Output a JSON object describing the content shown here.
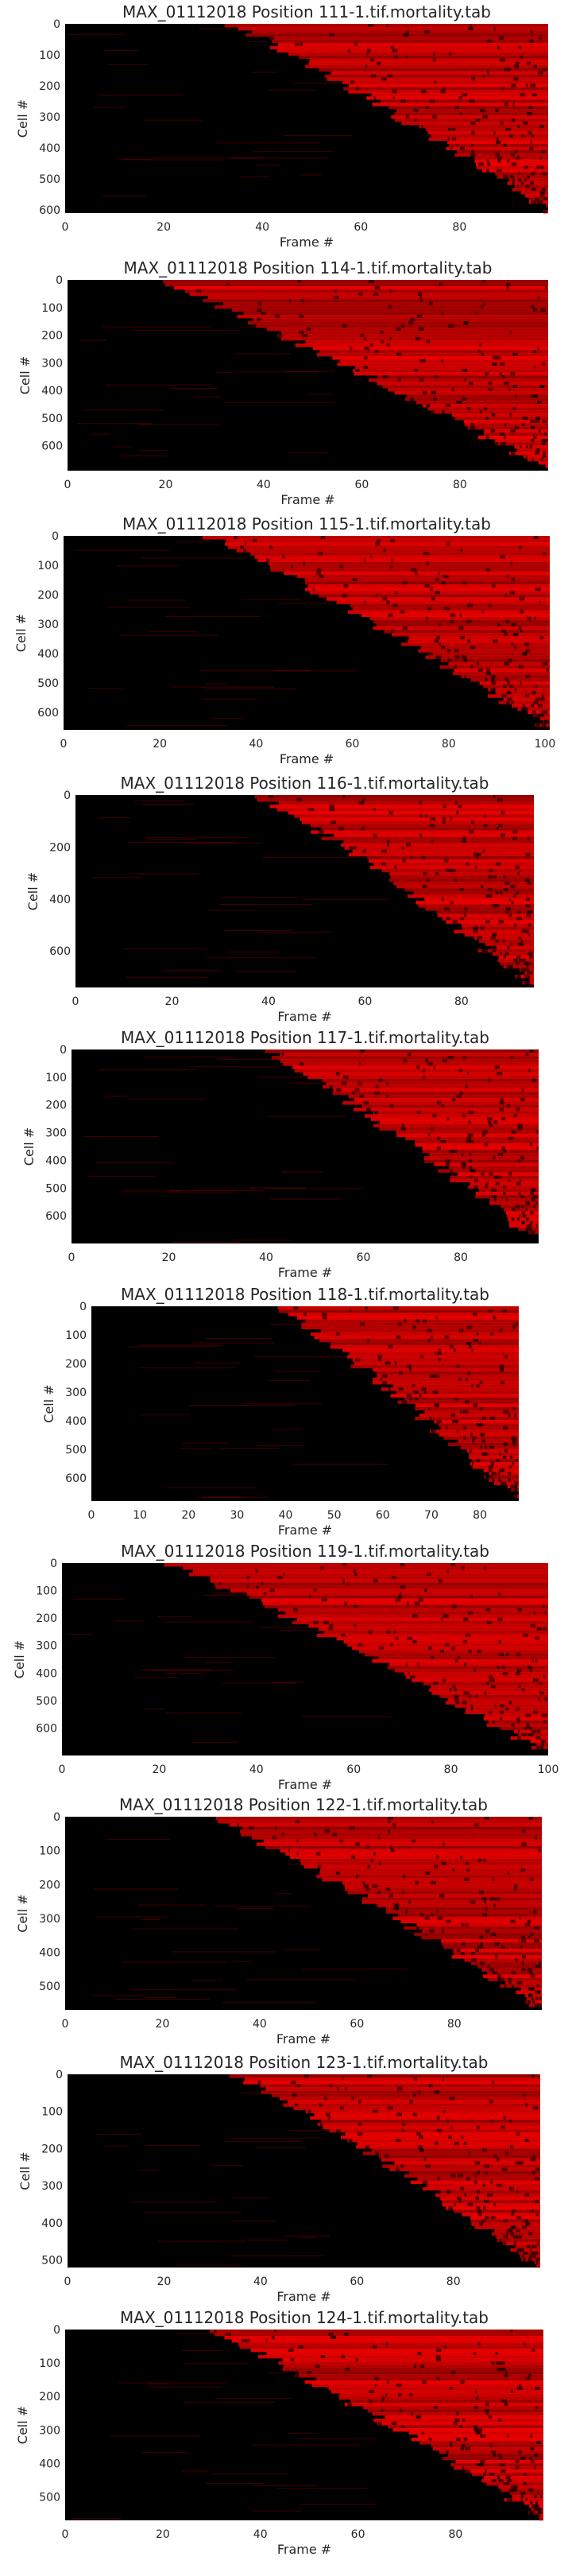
{
  "colors": {
    "background": "#000000",
    "accent": "#ff0000",
    "text": "#262626"
  },
  "chart_data": [
    {
      "type": "heatmap",
      "title": "MAX_01112018 Position 111-1.tif.mortality.tab",
      "xlabel": "Frame #",
      "ylabel": "Cell #",
      "xlim": [
        0,
        98
      ],
      "ylim": [
        0,
        610
      ],
      "x_ticks": [
        0,
        20,
        40,
        60,
        80
      ],
      "y_ticks": [
        0,
        100,
        200,
        300,
        400,
        500,
        600
      ],
      "grid": false,
      "death_frame_first": 34,
      "death_frame_last": 98
    },
    {
      "type": "heatmap",
      "title": "MAX_01112018 Position 114-1.tif.mortality.tab",
      "xlabel": "Frame #",
      "ylabel": "Cell #",
      "xlim": [
        0,
        98
      ],
      "ylim": [
        0,
        690
      ],
      "x_ticks": [
        0,
        20,
        40,
        60,
        80
      ],
      "y_ticks": [
        0,
        100,
        200,
        300,
        400,
        500,
        600
      ],
      "grid": false,
      "death_frame_first": 18,
      "death_frame_last": 98
    },
    {
      "type": "heatmap",
      "title": "MAX_01112018 Position 115-1.tif.mortality.tab",
      "xlabel": "Frame #",
      "ylabel": "Cell #",
      "xlim": [
        0,
        101
      ],
      "ylim": [
        0,
        660
      ],
      "x_ticks": [
        0,
        20,
        40,
        60,
        80,
        100
      ],
      "y_ticks": [
        0,
        100,
        200,
        300,
        400,
        500,
        600
      ],
      "grid": false,
      "death_frame_first": 30,
      "death_frame_last": 101
    },
    {
      "type": "heatmap",
      "title": "MAX_01112018 Position 116-1.tif.mortality.tab",
      "xlabel": "Frame #",
      "ylabel": "Cell #",
      "xlim": [
        0,
        95
      ],
      "ylim": [
        0,
        740
      ],
      "x_ticks": [
        0,
        20,
        40,
        60,
        80
      ],
      "y_ticks": [
        0,
        200,
        400,
        600
      ],
      "grid": false,
      "death_frame_first": 38,
      "death_frame_last": 95
    },
    {
      "type": "heatmap",
      "title": "MAX_01112018 Position 117-1.tif.mortality.tab",
      "xlabel": "Frame #",
      "ylabel": "Cell #",
      "xlim": [
        0,
        96
      ],
      "ylim": [
        0,
        700
      ],
      "x_ticks": [
        0,
        20,
        40,
        60,
        80
      ],
      "y_ticks": [
        0,
        100,
        200,
        300,
        400,
        500,
        600
      ],
      "grid": false,
      "death_frame_first": 40,
      "death_frame_last": 96
    },
    {
      "type": "heatmap",
      "title": "MAX_01112018 Position 118-1.tif.mortality.tab",
      "xlabel": "Frame #",
      "ylabel": "Cell #",
      "xlim": [
        0,
        88
      ],
      "ylim": [
        0,
        680
      ],
      "x_ticks": [
        0,
        10,
        20,
        30,
        40,
        50,
        60,
        70,
        80
      ],
      "y_ticks": [
        0,
        100,
        200,
        300,
        400,
        500,
        600
      ],
      "grid": false,
      "death_frame_first": 38,
      "death_frame_last": 88
    },
    {
      "type": "heatmap",
      "title": "MAX_01112018 Position 119-1.tif.mortality.tab",
      "xlabel": "Frame #",
      "ylabel": "Cell #",
      "xlim": [
        0,
        100
      ],
      "ylim": [
        0,
        700
      ],
      "x_ticks": [
        0,
        20,
        40,
        60,
        80,
        100
      ],
      "y_ticks": [
        0,
        100,
        200,
        300,
        400,
        500,
        600
      ],
      "grid": false,
      "death_frame_first": 22,
      "death_frame_last": 100
    },
    {
      "type": "heatmap",
      "title": "MAX_01112018 Position 122-1.tif.mortality.tab",
      "xlabel": "Frame #",
      "ylabel": "Cell #",
      "xlim": [
        0,
        98
      ],
      "ylim": [
        0,
        570
      ],
      "x_ticks": [
        0,
        20,
        40,
        60,
        80
      ],
      "y_ticks": [
        0,
        100,
        200,
        300,
        400,
        500
      ],
      "grid": false,
      "death_frame_first": 30,
      "death_frame_last": 98
    },
    {
      "type": "heatmap",
      "title": "MAX_01112018 Position 123-1.tif.mortality.tab",
      "xlabel": "Frame #",
      "ylabel": "Cell #",
      "xlim": [
        0,
        98
      ],
      "ylim": [
        0,
        520
      ],
      "x_ticks": [
        0,
        20,
        40,
        60,
        80
      ],
      "y_ticks": [
        0,
        100,
        200,
        300,
        400,
        500
      ],
      "grid": false,
      "death_frame_first": 35,
      "death_frame_last": 98
    },
    {
      "type": "heatmap",
      "title": "MAX_01112018 Position 124-1.tif.mortality.tab",
      "xlabel": "Frame #",
      "ylabel": "Cell #",
      "xlim": [
        0,
        98
      ],
      "ylim": [
        0,
        570
      ],
      "x_ticks": [
        0,
        20,
        40,
        60,
        80
      ],
      "y_ticks": [
        0,
        100,
        200,
        300,
        400,
        500
      ],
      "grid": false,
      "death_frame_first": 30,
      "death_frame_last": 98
    }
  ]
}
